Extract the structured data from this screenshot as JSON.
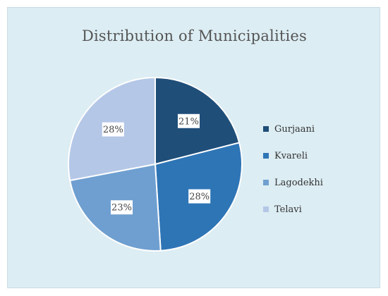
{
  "chart_data": {
    "type": "pie",
    "title": "Distribution of Municipalities",
    "categories": [
      "Gurjaani",
      "Kvareli",
      "Lagodekhi",
      "Telavi"
    ],
    "values": [
      21,
      28,
      23,
      28
    ],
    "value_labels": [
      "21%",
      "28%",
      "23%",
      "28%"
    ],
    "colors": [
      "#1f4e79",
      "#2e75b6",
      "#6f9fd0",
      "#b4c7e7"
    ],
    "legend_position": "right",
    "start_angle": "top, clockwise"
  }
}
